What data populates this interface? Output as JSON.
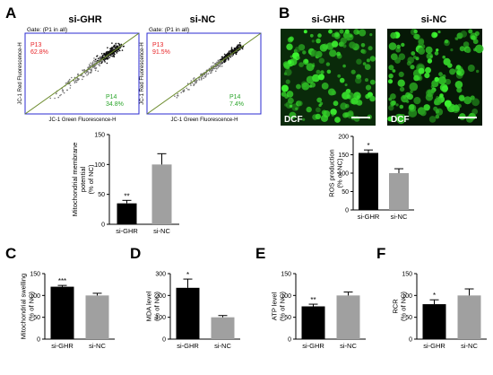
{
  "colors": {
    "black_bar": "#000000",
    "gray_bar": "#a0a0a0",
    "error_bar": "#000000",
    "gate_red": "#e8262a",
    "gate_green": "#2aa52a",
    "frame_blue": "#2b2bd0",
    "micro_green": "#2fd02f",
    "diag_line": "#6a8a2a",
    "bg": "#ffffff"
  },
  "panels": {
    "A": {
      "letter": "A",
      "flow": [
        {
          "title": "si-GHR",
          "gate": "Gate: (P1 in all)",
          "p13_label": "P13",
          "p13_value": "62.8%",
          "p14_label": "P14",
          "p14_value": "34.8%",
          "xlabel": "JC-1 Green Fluorescence-H",
          "ylabel": "JC-1 Red Fluorescence-H"
        },
        {
          "title": "si-NC",
          "gate": "Gate: (P1 in all)",
          "p13_label": "P13",
          "p13_value": "91.5%",
          "p14_label": "P14",
          "p14_value": "7.4%",
          "xlabel": "JC-1 Green Fluorescence-H",
          "ylabel": "JC-1 Red Fluorescence-H"
        }
      ]
    },
    "B": {
      "letter": "B",
      "micro": [
        {
          "title": "si-GHR",
          "label": "DCF"
        },
        {
          "title": "si-NC",
          "label": "DCF"
        }
      ]
    },
    "C": {
      "letter": "C"
    },
    "D": {
      "letter": "D"
    },
    "E": {
      "letter": "E"
    },
    "F": {
      "letter": "F"
    }
  },
  "chart_data": [
    {
      "id": "A",
      "type": "bar",
      "categories": [
        "si-GHR",
        "si-NC"
      ],
      "values": [
        35,
        100
      ],
      "errors": [
        5,
        18
      ],
      "ylabel": [
        "Mitochondrial membrane",
        "potential",
        "(% of NC)"
      ],
      "ylim": [
        0,
        150
      ],
      "ticks": [
        0,
        50,
        100,
        150
      ],
      "sig": [
        "**",
        ""
      ]
    },
    {
      "id": "B",
      "type": "bar",
      "categories": [
        "si-GHR",
        "si-NC"
      ],
      "values": [
        155,
        100
      ],
      "errors": [
        8,
        12
      ],
      "ylabel": [
        "ROS production",
        "(% of NC)"
      ],
      "ylim": [
        0,
        200
      ],
      "ticks": [
        0,
        50,
        100,
        150,
        200
      ],
      "sig": [
        "*",
        ""
      ]
    },
    {
      "id": "C",
      "type": "bar",
      "categories": [
        "si-GHR",
        "si-NC"
      ],
      "values": [
        120,
        100
      ],
      "errors": [
        3,
        5
      ],
      "ylabel": [
        "Mitochondrial swelling",
        "(% of NC)"
      ],
      "ylim": [
        0,
        150
      ],
      "ticks": [
        0,
        50,
        100,
        150
      ],
      "sig": [
        "***",
        ""
      ]
    },
    {
      "id": "D",
      "type": "bar",
      "categories": [
        "si-GHR",
        "si-NC"
      ],
      "values": [
        235,
        100
      ],
      "errors": [
        40,
        8
      ],
      "ylabel": [
        "MDA level",
        "(% of NC)"
      ],
      "ylim": [
        0,
        300
      ],
      "ticks": [
        0,
        100,
        200,
        300
      ],
      "sig": [
        "*",
        ""
      ]
    },
    {
      "id": "E",
      "type": "bar",
      "categories": [
        "si-GHR",
        "si-NC"
      ],
      "values": [
        75,
        100
      ],
      "errors": [
        5,
        8
      ],
      "ylabel": [
        "ATP level",
        "(% of NC)"
      ],
      "ylim": [
        0,
        150
      ],
      "ticks": [
        0,
        50,
        100,
        150
      ],
      "sig": [
        "**",
        ""
      ]
    },
    {
      "id": "F",
      "type": "bar",
      "categories": [
        "si-GHR",
        "si-NC"
      ],
      "values": [
        80,
        100
      ],
      "errors": [
        10,
        15
      ],
      "ylabel": [
        "RCR",
        "(% of NC)"
      ],
      "ylim": [
        0,
        150
      ],
      "ticks": [
        0,
        50,
        100,
        150
      ],
      "sig": [
        "*",
        ""
      ]
    }
  ]
}
